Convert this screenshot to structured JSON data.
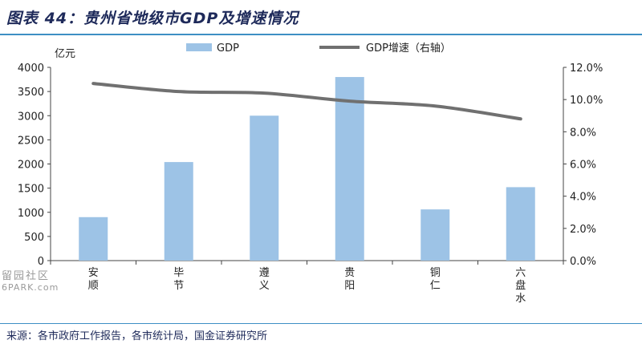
{
  "title": "图表 44：贵州省地级市GDP及增速情况",
  "source": "来源：各市政府工作报告，各市统计局，国金证券研究所",
  "watermark": {
    "line1": "留园社区",
    "line2": "6PARK.com"
  },
  "colors": {
    "bar": "#9dc3e6",
    "line": "#707070",
    "title": "#1e2a5a",
    "rule": "#3d8fc4"
  },
  "chart_data": {
    "type": "bar",
    "categories": [
      "安顺",
      "毕节",
      "遵义",
      "贵阳",
      "铜仁",
      "六盘水"
    ],
    "series": [
      {
        "name": "GDP",
        "type": "bar",
        "axis": "left",
        "values": [
          900,
          2040,
          3000,
          3800,
          1060,
          1520
        ]
      },
      {
        "name": "GDP增速（右轴）",
        "type": "line",
        "axis": "right",
        "values": [
          11.0,
          10.5,
          10.4,
          9.9,
          9.6,
          8.8
        ]
      }
    ],
    "ylabel_left": "亿元",
    "ylim_left": [
      0,
      4000
    ],
    "yticks_left": [
      "0",
      "500",
      "1000",
      "1500",
      "2000",
      "2500",
      "3000",
      "3500",
      "4000"
    ],
    "ylim_right": [
      0,
      12
    ],
    "yticks_right": [
      "0.0%",
      "2.0%",
      "4.0%",
      "6.0%",
      "8.0%",
      "10.0%",
      "12.0%"
    ],
    "legend": "top-center",
    "grid": false
  }
}
